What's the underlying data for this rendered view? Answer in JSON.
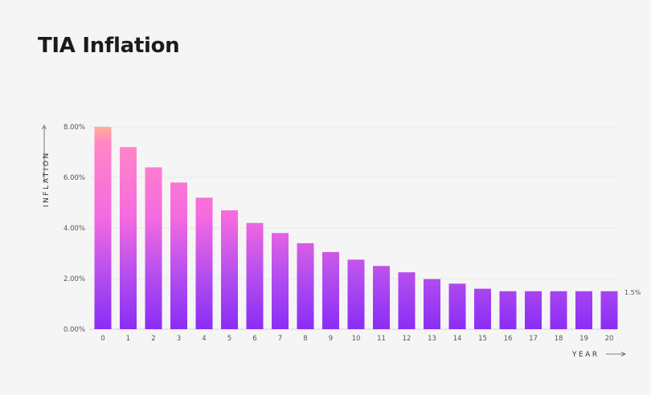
{
  "chart_data": {
    "type": "bar",
    "title": "TIA Inflation",
    "xlabel": "YEAR",
    "ylabel": "INFLATION",
    "categories": [
      "0",
      "1",
      "2",
      "3",
      "4",
      "5",
      "6",
      "7",
      "8",
      "9",
      "10",
      "11",
      "12",
      "13",
      "14",
      "15",
      "16",
      "17",
      "18",
      "19",
      "20"
    ],
    "values": [
      8.0,
      7.2,
      6.4,
      5.8,
      5.2,
      4.7,
      4.2,
      3.8,
      3.4,
      3.05,
      2.75,
      2.5,
      2.25,
      1.98,
      1.8,
      1.6,
      1.5,
      1.5,
      1.5,
      1.5,
      1.5
    ],
    "ylim": [
      0,
      8
    ],
    "yticks": [
      "0.00%",
      "2.00%",
      "4.00%",
      "6.00%",
      "8.00%"
    ],
    "ytick_values": [
      0,
      2,
      4,
      6,
      8
    ],
    "end_label": "1.5%",
    "grid": true,
    "colors": {
      "bar_top": "#ff7ad6",
      "bar_bottom": "#8a2df5",
      "bar_peak": "#ffb19a",
      "grid": "#e2e0e0",
      "axis": "#c9c7c7"
    }
  }
}
